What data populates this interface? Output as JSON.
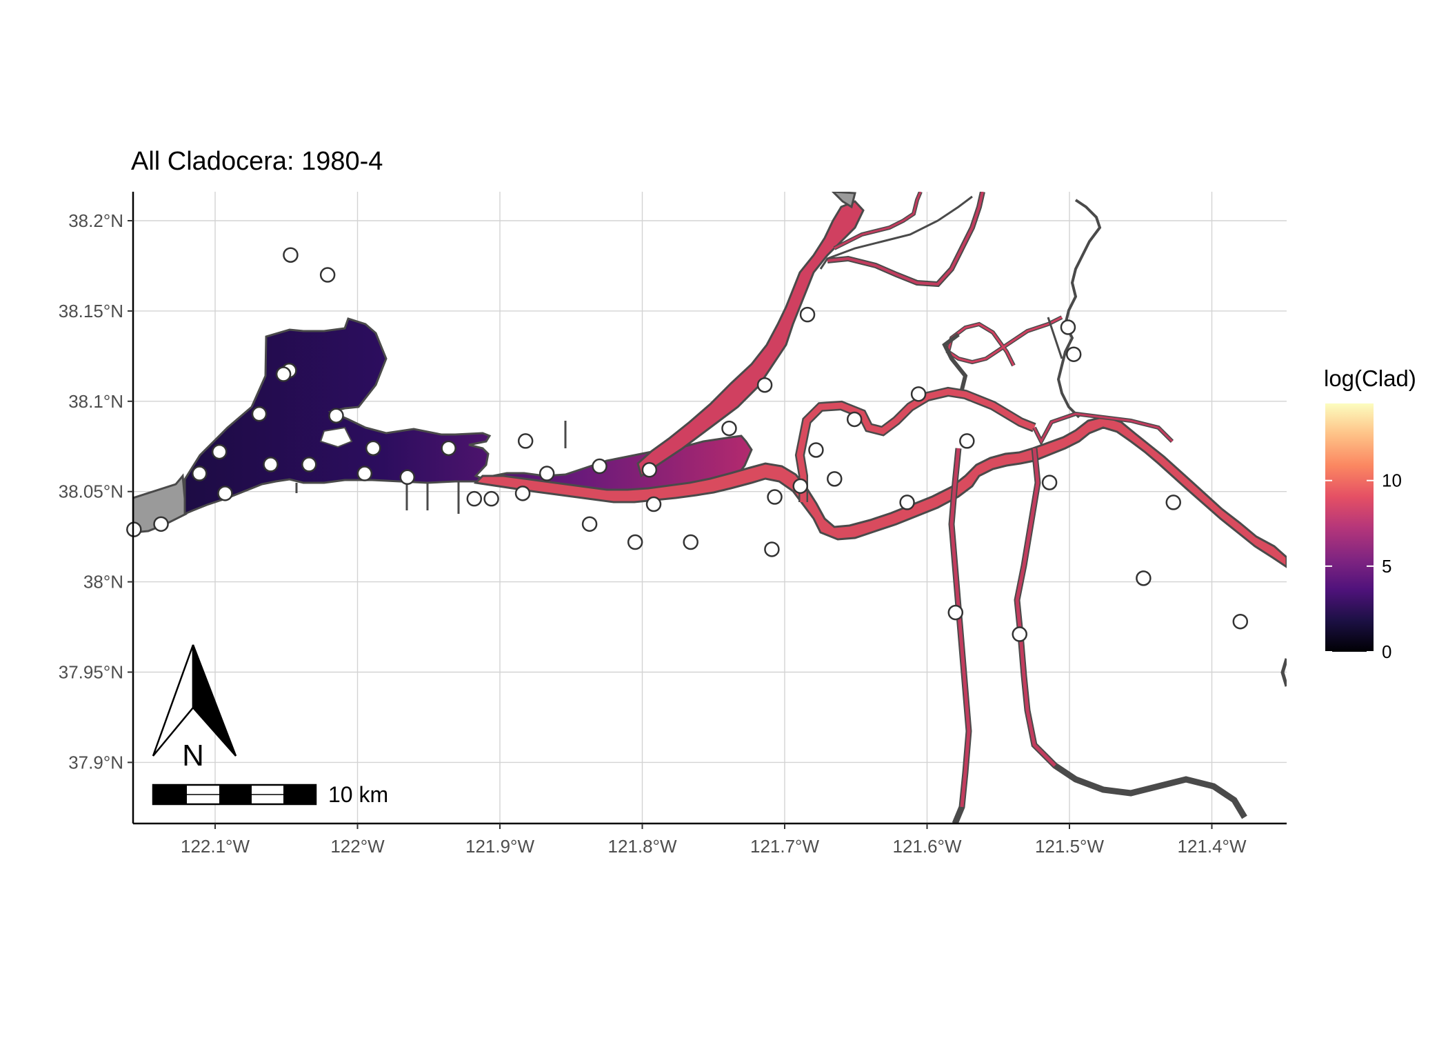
{
  "title": "All Cladocera: 1980-4",
  "axes": {
    "x_ticks": [
      "122.1°W",
      "122°W",
      "121.9°W",
      "121.8°W",
      "121.7°W",
      "121.6°W",
      "121.5°W",
      "121.4°W"
    ],
    "y_ticks": [
      "38.2°N",
      "38.15°N",
      "38.1°N",
      "38.05°N",
      "38°N",
      "37.95°N",
      "37.9°N"
    ]
  },
  "legend": {
    "title": "log(Clad)",
    "ticks": [
      "10",
      "5",
      "0"
    ],
    "colormap": "magma",
    "range": [
      0,
      14.5
    ]
  },
  "north_arrow": {
    "label": "N"
  },
  "scale_bar": {
    "label": "10 km"
  },
  "colors": {
    "land_edge": "#4a4a4a",
    "outside_area": "#9a9a9a",
    "station_fill": "#ffffff"
  },
  "stations": [
    {
      "lon": -122.157,
      "lat": 38.029
    },
    {
      "lon": -122.138,
      "lat": 38.032
    },
    {
      "lon": -122.047,
      "lat": 38.181
    },
    {
      "lon": -122.021,
      "lat": 38.17
    },
    {
      "lon": -122.048,
      "lat": 38.117
    },
    {
      "lon": -122.052,
      "lat": 38.115
    },
    {
      "lon": -122.069,
      "lat": 38.093
    },
    {
      "lon": -122.015,
      "lat": 38.092
    },
    {
      "lon": -122.097,
      "lat": 38.072
    },
    {
      "lon": -122.061,
      "lat": 38.065
    },
    {
      "lon": -122.034,
      "lat": 38.065
    },
    {
      "lon": -122.111,
      "lat": 38.06
    },
    {
      "lon": -122.093,
      "lat": 38.049
    },
    {
      "lon": -121.989,
      "lat": 38.074
    },
    {
      "lon": -121.995,
      "lat": 38.06
    },
    {
      "lon": -121.965,
      "lat": 38.058
    },
    {
      "lon": -121.936,
      "lat": 38.074
    },
    {
      "lon": -121.918,
      "lat": 38.046
    },
    {
      "lon": -121.906,
      "lat": 38.046
    },
    {
      "lon": -121.884,
      "lat": 38.049
    },
    {
      "lon": -121.882,
      "lat": 38.078
    },
    {
      "lon": -121.867,
      "lat": 38.06
    },
    {
      "lon": -121.83,
      "lat": 38.064
    },
    {
      "lon": -121.837,
      "lat": 38.032
    },
    {
      "lon": -121.805,
      "lat": 38.022
    },
    {
      "lon": -121.795,
      "lat": 38.062
    },
    {
      "lon": -121.792,
      "lat": 38.043
    },
    {
      "lon": -121.766,
      "lat": 38.022
    },
    {
      "lon": -121.739,
      "lat": 38.085
    },
    {
      "lon": -121.714,
      "lat": 38.109
    },
    {
      "lon": -121.684,
      "lat": 38.148
    },
    {
      "lon": -121.709,
      "lat": 38.018
    },
    {
      "lon": -121.707,
      "lat": 38.047
    },
    {
      "lon": -121.689,
      "lat": 38.053
    },
    {
      "lon": -121.678,
      "lat": 38.073
    },
    {
      "lon": -121.665,
      "lat": 38.057
    },
    {
      "lon": -121.651,
      "lat": 38.09
    },
    {
      "lon": -121.606,
      "lat": 38.104
    },
    {
      "lon": -121.614,
      "lat": 38.044
    },
    {
      "lon": -121.572,
      "lat": 38.078
    },
    {
      "lon": -121.58,
      "lat": 37.983
    },
    {
      "lon": -121.535,
      "lat": 37.971
    },
    {
      "lon": -121.514,
      "lat": 38.055
    },
    {
      "lon": -121.501,
      "lat": 38.141
    },
    {
      "lon": -121.497,
      "lat": 38.126
    },
    {
      "lon": -121.448,
      "lat": 38.002
    },
    {
      "lon": -121.427,
      "lat": 38.044
    },
    {
      "lon": -121.38,
      "lat": 37.978
    }
  ]
}
